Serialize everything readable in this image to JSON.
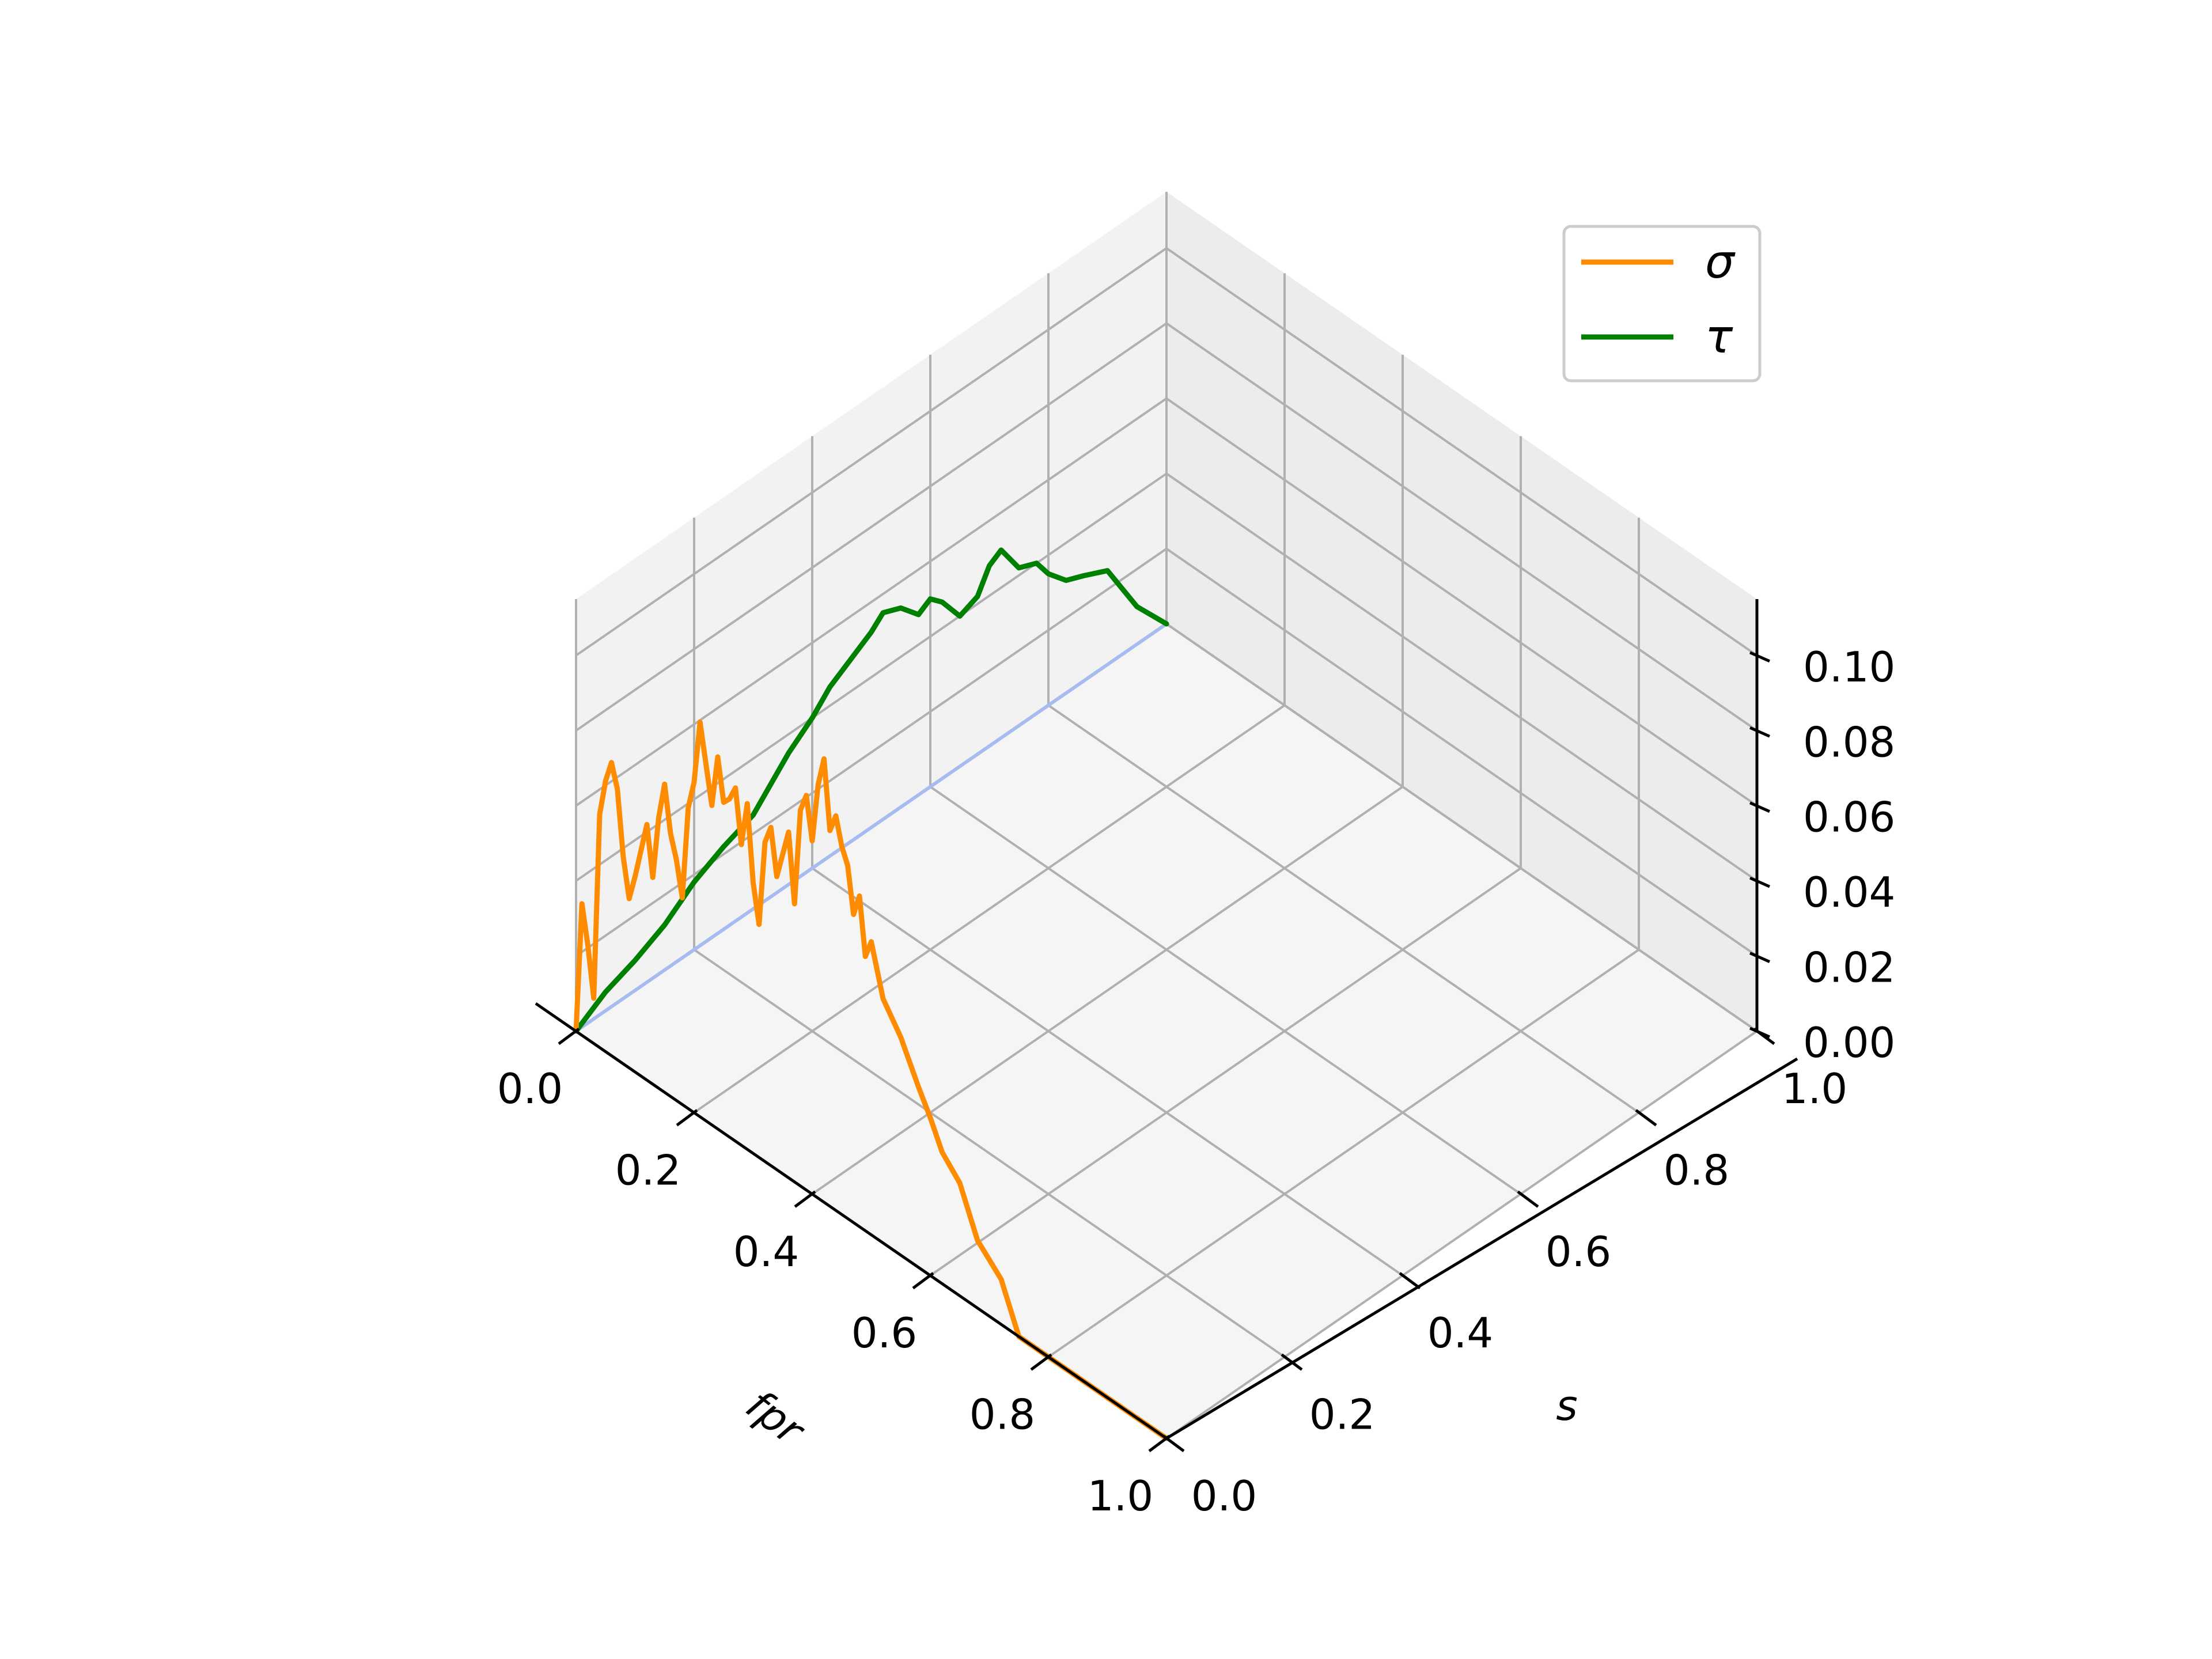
{
  "chart_data": {
    "type": "line3d",
    "title": "",
    "view": {
      "elevation_deg": 35,
      "azimuth_deg": -135
    },
    "axes": {
      "x": {
        "label": "fpr",
        "range": [
          0,
          1
        ],
        "ticks": [
          "0.0",
          "0.2",
          "0.4",
          "0.6",
          "0.8",
          "1.0"
        ],
        "tick_values": [
          0,
          0.2,
          0.4,
          0.6,
          0.8,
          1.0
        ]
      },
      "y": {
        "label": "s",
        "range": [
          0,
          1
        ],
        "ticks": [
          "0.0",
          "0.2",
          "0.4",
          "0.6",
          "0.8",
          "1.0"
        ],
        "tick_values": [
          0,
          0.2,
          0.4,
          0.6,
          0.8,
          1.0
        ]
      },
      "z": {
        "label": "",
        "range": [
          0,
          0.115
        ],
        "ticks": [
          "0.00",
          "0.02",
          "0.04",
          "0.06",
          "0.08",
          "0.10"
        ],
        "tick_values": [
          0,
          0.02,
          0.04,
          0.06,
          0.08,
          0.1
        ]
      }
    },
    "grid": true,
    "legend": {
      "position": "top-right"
    },
    "series": [
      {
        "name": "σ",
        "color": "#ff8c00",
        "fixed_s": 0,
        "fpr": [
          0.0,
          0.01,
          0.02,
          0.03,
          0.04,
          0.05,
          0.06,
          0.07,
          0.08,
          0.09,
          0.1,
          0.11,
          0.12,
          0.13,
          0.14,
          0.15,
          0.16,
          0.17,
          0.18,
          0.19,
          0.2,
          0.21,
          0.22,
          0.23,
          0.24,
          0.25,
          0.26,
          0.27,
          0.28,
          0.29,
          0.3,
          0.31,
          0.32,
          0.33,
          0.34,
          0.35,
          0.36,
          0.37,
          0.38,
          0.39,
          0.4,
          0.41,
          0.42,
          0.43,
          0.44,
          0.45,
          0.46,
          0.47,
          0.48,
          0.49,
          0.5,
          0.52,
          0.55,
          0.58,
          0.6,
          0.62,
          0.65,
          0.68,
          0.7,
          0.72,
          0.75,
          0.8,
          0.85,
          0.9,
          0.95,
          1.0
        ],
        "value": [
          0.0,
          0.035,
          0.025,
          0.012,
          0.062,
          0.072,
          0.078,
          0.072,
          0.055,
          0.045,
          0.052,
          0.06,
          0.068,
          0.055,
          0.072,
          0.082,
          0.07,
          0.064,
          0.055,
          0.08,
          0.088,
          0.105,
          0.095,
          0.085,
          0.099,
          0.088,
          0.09,
          0.094,
          0.08,
          0.092,
          0.072,
          0.062,
          0.085,
          0.09,
          0.078,
          0.085,
          0.092,
          0.074,
          0.1,
          0.105,
          0.094,
          0.11,
          0.118,
          0.1,
          0.105,
          0.098,
          0.094,
          0.082,
          0.088,
          0.073,
          0.078,
          0.065,
          0.058,
          0.048,
          0.042,
          0.035,
          0.03,
          0.018,
          0.015,
          0.012,
          0.0,
          0.0,
          0.0,
          0.0,
          0.0,
          0.0
        ]
      },
      {
        "name": "τ",
        "color": "#008000",
        "fixed_fpr": 0,
        "s": [
          0.0,
          0.05,
          0.1,
          0.15,
          0.2,
          0.25,
          0.3,
          0.33,
          0.36,
          0.4,
          0.43,
          0.46,
          0.5,
          0.52,
          0.55,
          0.58,
          0.6,
          0.62,
          0.65,
          0.68,
          0.7,
          0.72,
          0.75,
          0.78,
          0.8,
          0.83,
          0.86,
          0.9,
          0.95,
          1.0
        ],
        "value": [
          0.0,
          0.005,
          0.008,
          0.012,
          0.018,
          0.022,
          0.025,
          0.03,
          0.035,
          0.04,
          0.045,
          0.048,
          0.052,
          0.055,
          0.053,
          0.048,
          0.05,
          0.047,
          0.04,
          0.042,
          0.048,
          0.05,
          0.042,
          0.04,
          0.035,
          0.03,
          0.028,
          0.025,
          0.01,
          0.0
        ]
      },
      {
        "name": "",
        "color": "#a8bbf0",
        "fixed_fpr": 0,
        "s": [
          0.0,
          0.05,
          0.1,
          0.15,
          0.2,
          0.25,
          0.3,
          0.35,
          0.4,
          0.45,
          0.5,
          0.55,
          0.6,
          0.65,
          0.7,
          0.75,
          0.8,
          0.85,
          0.9,
          0.95,
          1.0
        ],
        "value": [
          0.0,
          0.0,
          0.0,
          0.0,
          0.0,
          0.0,
          0.0,
          0.0,
          0.0,
          0.0,
          0.0,
          0.0,
          0.0,
          0.0,
          0.0,
          0.0,
          0.0,
          0.0,
          0.0,
          0.0,
          0.0
        ]
      }
    ]
  }
}
